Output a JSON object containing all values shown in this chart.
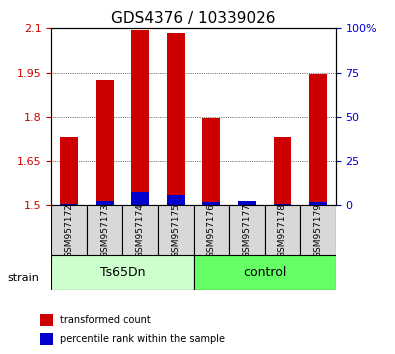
{
  "title": "GDS4376 / 10339026",
  "samples": [
    "GSM957172",
    "GSM957173",
    "GSM957174",
    "GSM957175",
    "GSM957176",
    "GSM957177",
    "GSM957178",
    "GSM957179"
  ],
  "red_values": [
    1.73,
    1.925,
    2.095,
    2.085,
    1.795,
    1.51,
    1.73,
    1.945
  ],
  "blue_values": [
    1.505,
    1.515,
    1.545,
    1.535,
    1.51,
    1.515,
    1.505,
    1.51
  ],
  "baseline": 1.5,
  "ylim_left": [
    1.5,
    2.1
  ],
  "ylim_right": [
    0,
    100
  ],
  "yticks_left": [
    1.5,
    1.65,
    1.8,
    1.95,
    2.1
  ],
  "ytick_labels_left": [
    "1.5",
    "1.65",
    "1.8",
    "1.95",
    "2.1"
  ],
  "yticks_right": [
    0,
    25,
    50,
    75,
    100
  ],
  "ytick_labels_right": [
    "0",
    "25",
    "50",
    "75",
    "100%"
  ],
  "bar_width": 0.5,
  "red_color": "#cc0000",
  "blue_color": "#0000cc",
  "group1_label": "Ts65Dn",
  "group2_label": "control",
  "group1_color": "#ccffcc",
  "group2_color": "#66ff66",
  "strain_label": "strain",
  "legend_red": "transformed count",
  "legend_blue": "percentile rank within the sample",
  "sample_bg_color": "#d8d8d8",
  "title_fontsize": 11
}
